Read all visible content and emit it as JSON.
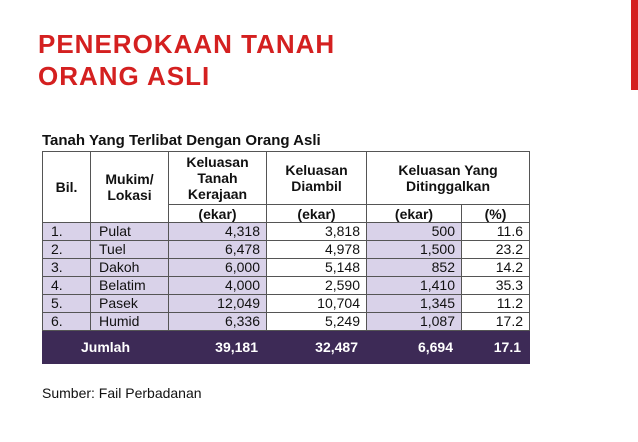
{
  "title": {
    "line1": "PENEROKAAN TANAH",
    "line2": "ORANG ASLI"
  },
  "table": {
    "caption": "Tanah Yang Terlibat Dengan Orang Asli",
    "headers": {
      "bil": "Bil.",
      "mukim_line1": "Mukim/",
      "mukim_line2": "Lokasi",
      "kt_line1": "Keluasan",
      "kt_line2": "Tanah",
      "kt_line3": "Kerajaan",
      "kd_line1": "Keluasan",
      "kd_line2": "Diambil",
      "kdt_line1": "Keluasan Yang",
      "kdt_line2": "Ditinggalkan",
      "unit_ekar": "(ekar)",
      "unit_pct": "(%)"
    },
    "rows": [
      {
        "bil": "1.",
        "mukim": "Pulat",
        "tanah_kerajaan": "4,318",
        "diambil": "3,818",
        "ditinggalkan_ekar": "500",
        "ditinggalkan_pct": "11.6"
      },
      {
        "bil": "2.",
        "mukim": "Tuel",
        "tanah_kerajaan": "6,478",
        "diambil": "4,978",
        "ditinggalkan_ekar": "1,500",
        "ditinggalkan_pct": "23.2"
      },
      {
        "bil": "3.",
        "mukim": "Dakoh",
        "tanah_kerajaan": "6,000",
        "diambil": "5,148",
        "ditinggalkan_ekar": "852",
        "ditinggalkan_pct": "14.2"
      },
      {
        "bil": "4.",
        "mukim": "Belatim",
        "tanah_kerajaan": "4,000",
        "diambil": "2,590",
        "ditinggalkan_ekar": "1,410",
        "ditinggalkan_pct": "35.3"
      },
      {
        "bil": "5.",
        "mukim": "Pasek",
        "tanah_kerajaan": "12,049",
        "diambil": "10,704",
        "ditinggalkan_ekar": "1,345",
        "ditinggalkan_pct": "11.2"
      },
      {
        "bil": "6.",
        "mukim": "Humid",
        "tanah_kerajaan": "6,336",
        "diambil": "5,249",
        "ditinggalkan_ekar": "1,087",
        "ditinggalkan_pct": "17.2"
      }
    ],
    "total": {
      "label": "Jumlah",
      "tanah_kerajaan": "39,181",
      "diambil": "32,487",
      "ditinggalkan_ekar": "6,694",
      "ditinggalkan_pct": "17.1"
    }
  },
  "source": "Sumber: Fail Perbadanan",
  "colors": {
    "title_red": "#d42020",
    "row_lavender": "#d9d2e9",
    "total_purple": "#3d2a56"
  }
}
